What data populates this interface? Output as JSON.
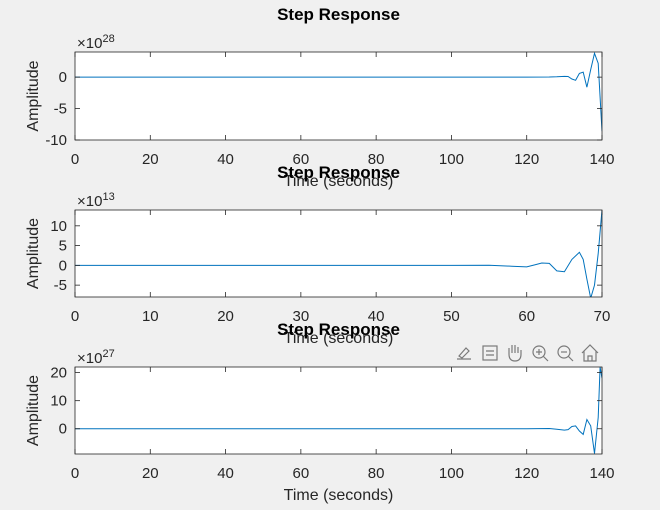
{
  "toolbar": {
    "icons": [
      "brush-icon",
      "data-tips-icon",
      "pan-hand-icon",
      "zoom-in-icon",
      "zoom-out-icon",
      "home-icon"
    ]
  },
  "colors": {
    "line": "#0072bd",
    "axes_bg": "#ffffff",
    "figure_bg": "#f0f0f0",
    "axis": "#262626"
  },
  "chart_data": [
    {
      "type": "line",
      "title": "Step Response",
      "xlabel": "Time (seconds)",
      "ylabel": "Amplitude",
      "exponent_base": "×10",
      "exponent_power": "28",
      "xlim": [
        0,
        140
      ],
      "ylim": [
        -10,
        4
      ],
      "xticks": [
        0,
        20,
        40,
        60,
        80,
        100,
        120,
        140
      ],
      "yticks": [
        0,
        -5,
        -10
      ],
      "series": [
        {
          "x": [
            0,
            120,
            126,
            128,
            130,
            131,
            132,
            133,
            134,
            135,
            136,
            137,
            138,
            139,
            140
          ],
          "values": [
            0,
            0,
            0.02,
            0.05,
            0.12,
            0.1,
            -0.3,
            -0.5,
            0.6,
            0.8,
            -1.6,
            1.2,
            3.8,
            2.2,
            -8.6
          ]
        }
      ],
      "grid": false
    },
    {
      "type": "line",
      "title": "Step Response",
      "xlabel": "Time (seconds)",
      "ylabel": "Amplitude",
      "exponent_base": "×10",
      "exponent_power": "13",
      "xlim": [
        0,
        70
      ],
      "ylim": [
        -8,
        14
      ],
      "xticks": [
        0,
        10,
        20,
        30,
        40,
        50,
        60,
        70
      ],
      "yticks": [
        10,
        5,
        0,
        -5
      ],
      "series": [
        {
          "x": [
            0,
            50,
            55,
            58,
            60,
            61,
            62,
            63,
            64,
            65,
            66,
            67,
            67.5,
            68,
            68.5,
            69,
            69.5,
            70
          ],
          "values": [
            0,
            0,
            0.05,
            -0.2,
            -0.4,
            0.1,
            0.6,
            0.5,
            -1.4,
            -1.6,
            1.5,
            3.3,
            1.5,
            -3.5,
            -8.3,
            -5,
            3,
            14
          ]
        }
      ],
      "grid": false
    },
    {
      "type": "line",
      "title": "Step Response",
      "xlabel": "Time (seconds)",
      "ylabel": "Amplitude",
      "exponent_base": "×10",
      "exponent_power": "27",
      "xlim": [
        0,
        140
      ],
      "ylim": [
        -9,
        22
      ],
      "xticks": [
        0,
        20,
        40,
        60,
        80,
        100,
        120,
        140
      ],
      "yticks": [
        20,
        10,
        0
      ],
      "series": [
        {
          "x": [
            0,
            120,
            126,
            128,
            130,
            131,
            132,
            133,
            134,
            135,
            136,
            137,
            138,
            139,
            139.5,
            140
          ],
          "values": [
            0,
            0,
            0.1,
            -0.2,
            -0.5,
            -0.3,
            0.8,
            1.0,
            -0.8,
            -2.0,
            3.3,
            1.0,
            -8.8,
            4.0,
            22,
            18
          ]
        }
      ],
      "grid": false
    }
  ]
}
